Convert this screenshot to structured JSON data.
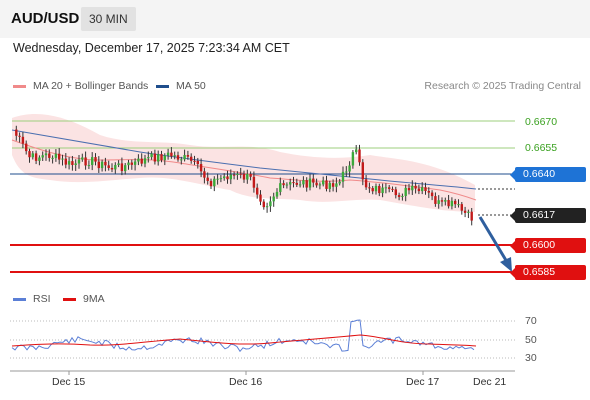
{
  "header": {
    "symbol": "AUD/USD",
    "timeframe": "30 MIN"
  },
  "datetime": "Wednesday, December 17, 2025 7:23:34 AM CET",
  "legend": {
    "ma20_label": "MA 20 + Bollinger Bands",
    "ma50_label": "MA 50",
    "ma20_color": "#f08a8a",
    "ma50_color": "#1f4e8c"
  },
  "research_credit": "Research © 2025 Trading Central",
  "levels": {
    "green_upper": "0.6670",
    "green_lower": "0.6655",
    "pivot": "0.6640",
    "current": "0.6617",
    "support1": "0.6600",
    "support2": "0.6585"
  },
  "rsi_legend": {
    "rsi_label": "RSI",
    "ma_label": "9MA",
    "rsi_color": "#5b7fd6",
    "ma_color": "#e01010"
  },
  "rsi_axis": [
    "70",
    "50",
    "30"
  ],
  "x_axis": [
    "Dec 15",
    "Dec 16",
    "Dec 17",
    "Dec 21"
  ]
}
